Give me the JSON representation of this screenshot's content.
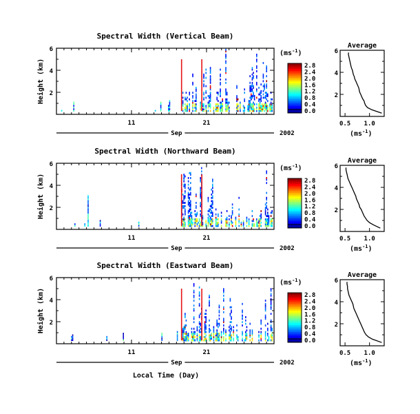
{
  "figure": {
    "xlabel": "Local Time (Day)",
    "month_label": "Sep",
    "year_label": "2002"
  },
  "chart_data": [
    {
      "type": "heatmap",
      "title": "Spectral Width (Vertical Beam)",
      "ylabel": "Height (km)",
      "ylim": [
        0,
        6
      ],
      "yticks": [
        2,
        4,
        6
      ],
      "xticks": [
        "11",
        "21"
      ],
      "colorbar": {
        "unit": "(ms-1)",
        "range": [
          0.0,
          2.8
        ],
        "ticks": [
          "0.0",
          "0.4",
          "0.8",
          "1.2",
          "1.6",
          "2.0",
          "2.4",
          "2.8"
        ]
      },
      "average": {
        "type": "line",
        "title": "Average",
        "xlabel": "(ms-1)",
        "xticks": [
          "0.5",
          "1.0"
        ],
        "xlim": [
          0.4,
          1.3
        ],
        "ylim": [
          0,
          6
        ],
        "x": [
          1.25,
          1.05,
          0.96,
          0.92,
          0.9,
          0.89,
          0.86,
          0.84,
          0.82,
          0.8,
          0.79,
          0.78,
          0.76,
          0.74,
          0.72,
          0.7,
          0.69,
          0.67,
          0.66,
          0.65,
          0.63,
          0.62,
          0.61,
          0.6,
          0.59,
          0.58,
          0.57,
          0.57
        ],
        "y": [
          0.3,
          0.6,
          0.8,
          1.0,
          1.2,
          1.4,
          1.6,
          1.8,
          2.0,
          2.2,
          2.4,
          2.6,
          2.8,
          3.0,
          3.2,
          3.4,
          3.6,
          3.8,
          4.0,
          4.2,
          4.4,
          4.6,
          4.8,
          5.0,
          5.2,
          5.4,
          5.6,
          5.8
        ]
      }
    },
    {
      "type": "heatmap",
      "title": "Spectral Width (Northward Beam)",
      "ylabel": "Height (km)",
      "ylim": [
        0,
        6
      ],
      "yticks": [
        2,
        4,
        6
      ],
      "xticks": [
        "11",
        "21"
      ],
      "colorbar": {
        "unit": "(ms-1)",
        "range": [
          0.0,
          2.8
        ],
        "ticks": [
          "0.0",
          "0.4",
          "0.8",
          "1.2",
          "1.6",
          "2.0",
          "2.4",
          "2.8"
        ]
      },
      "average": {
        "type": "line",
        "title": "Average",
        "xlabel": "(ms-1)",
        "xticks": [
          "0.5",
          "1.0"
        ],
        "xlim": [
          0.4,
          1.3
        ],
        "ylim": [
          0,
          6
        ],
        "x": [
          1.22,
          1.08,
          1.0,
          0.95,
          0.92,
          0.89,
          0.87,
          0.85,
          0.83,
          0.8,
          0.79,
          0.77,
          0.75,
          0.73,
          0.72,
          0.7,
          0.68,
          0.66,
          0.64,
          0.62,
          0.6,
          0.58,
          0.56,
          0.55,
          0.54,
          0.53,
          0.52,
          0.52
        ],
        "y": [
          0.3,
          0.6,
          0.8,
          1.0,
          1.2,
          1.4,
          1.6,
          1.8,
          2.0,
          2.2,
          2.4,
          2.6,
          2.8,
          3.0,
          3.2,
          3.4,
          3.6,
          3.8,
          4.0,
          4.2,
          4.4,
          4.6,
          4.8,
          5.0,
          5.2,
          5.4,
          5.6,
          5.8
        ]
      }
    },
    {
      "type": "heatmap",
      "title": "Spectral Width (Eastward Beam)",
      "ylabel": "Height (km)",
      "ylim": [
        0,
        6
      ],
      "yticks": [
        2,
        4,
        6
      ],
      "xticks": [
        "11",
        "21"
      ],
      "colorbar": {
        "unit": "(ms-1)",
        "range": [
          0.0,
          2.8
        ],
        "ticks": [
          "0.0",
          "0.4",
          "0.8",
          "1.2",
          "1.6",
          "2.0",
          "2.4",
          "2.8"
        ]
      },
      "average": {
        "type": "line",
        "title": "Average",
        "xlabel": "(ms-1)",
        "xticks": [
          "0.5",
          "1.0"
        ],
        "xlim": [
          0.4,
          1.3
        ],
        "ylim": [
          0,
          6
        ],
        "x": [
          1.25,
          1.06,
          0.98,
          0.93,
          0.9,
          0.88,
          0.86,
          0.84,
          0.82,
          0.8,
          0.78,
          0.76,
          0.74,
          0.72,
          0.7,
          0.68,
          0.67,
          0.66,
          0.64,
          0.62,
          0.6,
          0.58,
          0.57,
          0.56,
          0.55,
          0.55,
          0.54,
          0.54
        ],
        "y": [
          0.3,
          0.6,
          0.8,
          1.0,
          1.2,
          1.4,
          1.6,
          1.8,
          2.0,
          2.2,
          2.4,
          2.6,
          2.8,
          3.0,
          3.2,
          3.4,
          3.6,
          3.8,
          4.0,
          4.2,
          4.4,
          4.6,
          4.8,
          5.0,
          5.2,
          5.4,
          5.6,
          5.8
        ]
      }
    }
  ]
}
